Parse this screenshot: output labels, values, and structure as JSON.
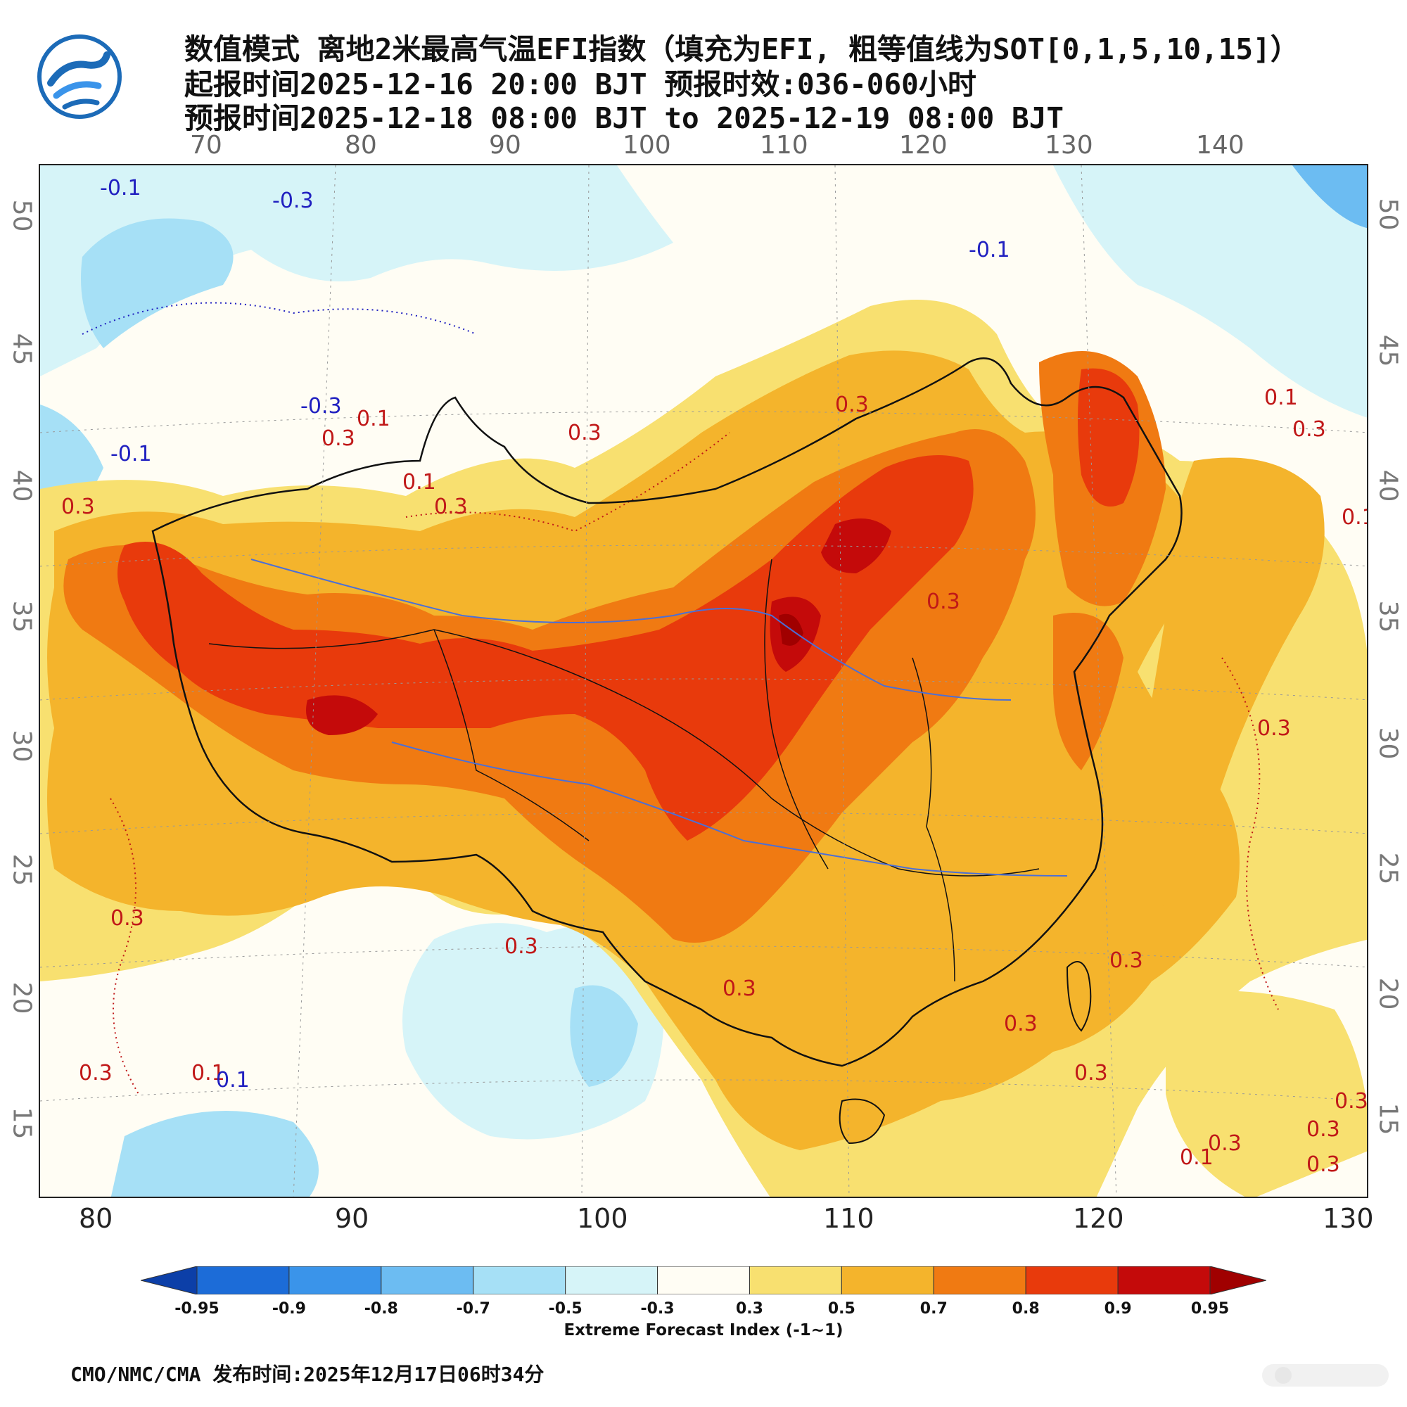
{
  "header": {
    "line1": "数值模式 离地2米最高气温EFI指数（填充为EFI, 粗等值线为SOT[0,1,5,10,15]）",
    "line2": "起报时间2025-12-16 20:00 BJT 预报时效:036-060小时",
    "line3": "预报时间2025-12-18 08:00 BJT to 2025-12-19 08:00 BJT"
  },
  "axes": {
    "top_lon": [
      "70",
      "80",
      "90",
      "100",
      "110",
      "120",
      "130",
      "140"
    ],
    "bottom_lon": [
      "80",
      "90",
      "100",
      "110",
      "120",
      "130"
    ],
    "left_lat": [
      "50",
      "45",
      "40",
      "35",
      "30",
      "25",
      "20",
      "15"
    ],
    "right_lat": [
      "50",
      "45",
      "40",
      "35",
      "30",
      "25",
      "20",
      "15"
    ]
  },
  "contour_labels": [
    {
      "text": "-0.1",
      "color": "#2020c0"
    },
    {
      "text": "-0.3",
      "color": "#2020c0"
    },
    {
      "text": "-0.1",
      "color": "#2020c0"
    },
    {
      "text": "-0.3",
      "color": "#2020c0"
    },
    {
      "text": "-0.1",
      "color": "#2020c0"
    },
    {
      "text": "0.3",
      "color": "#c01818"
    },
    {
      "text": "0.1",
      "color": "#c01818"
    },
    {
      "text": "0.3",
      "color": "#c01818"
    },
    {
      "text": "0.3",
      "color": "#c01818"
    },
    {
      "text": "0.1",
      "color": "#c01818"
    },
    {
      "text": "0.3",
      "color": "#c01818"
    },
    {
      "text": "0.3",
      "color": "#c01818"
    },
    {
      "text": "0.1",
      "color": "#c01818"
    },
    {
      "text": "0.3",
      "color": "#c01818"
    },
    {
      "text": "0.1",
      "color": "#c01818"
    },
    {
      "text": "0.3",
      "color": "#c01818"
    },
    {
      "text": "0.3",
      "color": "#c01818"
    },
    {
      "text": "0.3",
      "color": "#c01818"
    },
    {
      "text": "0.3",
      "color": "#c01818"
    },
    {
      "text": "0.3",
      "color": "#c01818"
    },
    {
      "text": "0.3",
      "color": "#c01818"
    },
    {
      "text": "0.3",
      "color": "#c01818"
    },
    {
      "text": "0.3",
      "color": "#c01818"
    },
    {
      "text": "0.3",
      "color": "#c01818"
    },
    {
      "text": "0.3",
      "color": "#c01818"
    },
    {
      "text": "0.1",
      "color": "#c01818"
    },
    {
      "text": "0.3",
      "color": "#c01818"
    },
    {
      "text": "0.3",
      "color": "#c01818"
    },
    {
      "text": "0.3",
      "color": "#c01818"
    },
    {
      "text": "0.1",
      "color": "#c01818"
    },
    {
      "text": "0.1",
      "color": "#2020c0"
    }
  ],
  "colorbar": {
    "labels": [
      "-0.95",
      "-0.9",
      "-0.8",
      "-0.7",
      "-0.5",
      "-0.3",
      "0.3",
      "0.5",
      "0.7",
      "0.8",
      "0.9",
      "0.95"
    ],
    "colors": [
      "#0c3fa8",
      "#1c6cd8",
      "#3a94ea",
      "#6cbcf2",
      "#a6e0f6",
      "#d6f4f8",
      "#fffdf4",
      "#f8e070",
      "#f4b42c",
      "#f07a12",
      "#e83a0c",
      "#c40a0a",
      "#a00000"
    ],
    "title": "Extreme Forecast Index (-1~1)"
  },
  "footer": {
    "text": "CMO/NMC/CMA 发布时间:2025年12月17日06时34分"
  },
  "legend_colors": {
    "neg_contour": "#2020c0",
    "pos_contour": "#c01818",
    "border": "#111111",
    "river": "#4a6fd8"
  }
}
